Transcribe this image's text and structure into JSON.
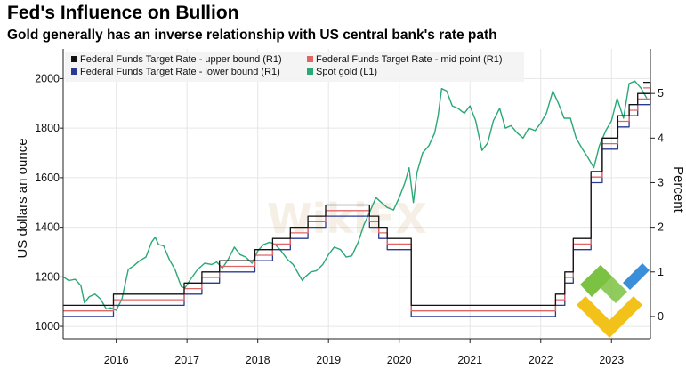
{
  "title": "Fed's Influence on Bullion",
  "subtitle": "Gold generally has an inverse relationship with US central bank's rate path",
  "watermark": "WikiFX",
  "colors": {
    "upper": "#111111",
    "mid": "#e06666",
    "lower": "#2b3a8f",
    "gold": "#2aa876",
    "grid": "#e6e6e6",
    "logo_green": "#7cc242",
    "logo_yellow": "#f2c21b",
    "logo_blue": "#3a8fd8"
  },
  "chart_data": {
    "type": "line",
    "title": "Fed's Influence on Bullion",
    "subtitle": "Gold generally has an inverse relationship with US central bank's rate path",
    "ylabel_left": "US dollars an ounce",
    "ylabel_right": "Percent",
    "xlim": [
      2015.25,
      2023.55
    ],
    "ylim_left": [
      950,
      2120
    ],
    "ylim_right": [
      -0.5,
      6.0
    ],
    "x_tick_labels": [
      "2016",
      "2017",
      "2018",
      "2019",
      "2020",
      "2021",
      "2022",
      "2023"
    ],
    "x_tick_positions": [
      2016.0,
      2017.0,
      2018.0,
      2019.0,
      2020.0,
      2021.0,
      2022.0,
      2023.0
    ],
    "y_left_ticks": [
      1000,
      1200,
      1400,
      1600,
      1800,
      2000
    ],
    "y_right_ticks": [
      0,
      1,
      2,
      3,
      4,
      5
    ],
    "grid": true,
    "legend_position": "top",
    "legend": [
      "Federal Funds Target Rate - upper bound (R1)",
      "Federal Funds Target Rate - mid point (R1)",
      "Federal Funds Target Rate - lower bound (R1)",
      "Spot gold (L1)"
    ],
    "series": [
      {
        "name": "Federal Funds Target Rate - upper bound (R1)",
        "axis": "right",
        "shape": "step",
        "x": [
          2015.25,
          2015.96,
          2016.96,
          2017.21,
          2017.46,
          2017.96,
          2018.21,
          2018.46,
          2018.71,
          2018.96,
          2019.58,
          2019.71,
          2019.83,
          2020.17,
          2022.21,
          2022.34,
          2022.46,
          2022.71,
          2022.87,
          2023.09,
          2023.25,
          2023.37,
          2023.55
        ],
        "values": [
          0.25,
          0.5,
          0.75,
          1.0,
          1.25,
          1.5,
          1.75,
          2.0,
          2.25,
          2.5,
          2.25,
          2.0,
          1.75,
          0.25,
          0.5,
          1.0,
          1.75,
          3.25,
          4.0,
          4.5,
          4.75,
          5.0,
          5.25
        ]
      },
      {
        "name": "Federal Funds Target Rate - mid point (R1)",
        "axis": "right",
        "shape": "step",
        "x": [
          2015.25,
          2015.96,
          2016.96,
          2017.21,
          2017.46,
          2017.96,
          2018.21,
          2018.46,
          2018.71,
          2018.96,
          2019.58,
          2019.71,
          2019.83,
          2020.17,
          2022.21,
          2022.34,
          2022.46,
          2022.71,
          2022.87,
          2023.09,
          2023.25,
          2023.37,
          2023.55
        ],
        "values": [
          0.125,
          0.375,
          0.625,
          0.875,
          1.125,
          1.375,
          1.625,
          1.875,
          2.125,
          2.375,
          2.125,
          1.875,
          1.625,
          0.125,
          0.375,
          0.875,
          1.625,
          3.125,
          3.875,
          4.375,
          4.625,
          4.875,
          5.125
        ]
      },
      {
        "name": "Federal Funds Target Rate - lower bound (R1)",
        "axis": "right",
        "shape": "step",
        "x": [
          2015.25,
          2015.96,
          2016.96,
          2017.21,
          2017.46,
          2017.96,
          2018.21,
          2018.46,
          2018.71,
          2018.96,
          2019.58,
          2019.71,
          2019.83,
          2020.17,
          2022.21,
          2022.34,
          2022.46,
          2022.71,
          2022.87,
          2023.09,
          2023.25,
          2023.37,
          2023.55
        ],
        "values": [
          0.0,
          0.25,
          0.5,
          0.75,
          1.0,
          1.25,
          1.5,
          1.75,
          2.0,
          2.25,
          2.0,
          1.75,
          1.5,
          0.0,
          0.25,
          0.75,
          1.5,
          3.0,
          3.75,
          4.25,
          4.5,
          4.75,
          5.0
        ]
      },
      {
        "name": "Spot gold (L1)",
        "axis": "left",
        "shape": "line",
        "x": [
          2015.25,
          2015.33,
          2015.42,
          2015.5,
          2015.55,
          2015.62,
          2015.7,
          2015.78,
          2015.86,
          2015.92,
          2016.0,
          2016.08,
          2016.17,
          2016.25,
          2016.33,
          2016.42,
          2016.5,
          2016.55,
          2016.6,
          2016.67,
          2016.75,
          2016.83,
          2016.92,
          2016.97,
          2017.05,
          2017.15,
          2017.25,
          2017.35,
          2017.42,
          2017.5,
          2017.58,
          2017.67,
          2017.75,
          2017.83,
          2017.92,
          2018.0,
          2018.08,
          2018.17,
          2018.25,
          2018.33,
          2018.42,
          2018.5,
          2018.58,
          2018.63,
          2018.67,
          2018.75,
          2018.83,
          2018.92,
          2019.0,
          2019.08,
          2019.17,
          2019.25,
          2019.33,
          2019.42,
          2019.5,
          2019.58,
          2019.67,
          2019.75,
          2019.83,
          2019.92,
          2020.0,
          2020.08,
          2020.14,
          2020.2,
          2020.25,
          2020.33,
          2020.42,
          2020.5,
          2020.55,
          2020.6,
          2020.67,
          2020.75,
          2020.83,
          2020.92,
          2021.0,
          2021.08,
          2021.17,
          2021.25,
          2021.33,
          2021.42,
          2021.5,
          2021.58,
          2021.67,
          2021.75,
          2021.83,
          2021.92,
          2022.0,
          2022.08,
          2022.17,
          2022.25,
          2022.33,
          2022.42,
          2022.5,
          2022.58,
          2022.67,
          2022.75,
          2022.83,
          2022.92,
          2023.0,
          2023.08,
          2023.17,
          2023.25,
          2023.33,
          2023.42,
          2023.5
        ],
        "values": [
          1200,
          1185,
          1190,
          1165,
          1095,
          1120,
          1130,
          1110,
          1070,
          1075,
          1065,
          1110,
          1230,
          1245,
          1265,
          1280,
          1340,
          1360,
          1330,
          1325,
          1270,
          1230,
          1160,
          1155,
          1190,
          1230,
          1255,
          1250,
          1260,
          1235,
          1270,
          1320,
          1290,
          1280,
          1255,
          1305,
          1330,
          1340,
          1330,
          1305,
          1270,
          1250,
          1210,
          1185,
          1200,
          1220,
          1225,
          1250,
          1290,
          1320,
          1310,
          1280,
          1285,
          1340,
          1410,
          1460,
          1520,
          1500,
          1480,
          1470,
          1520,
          1580,
          1640,
          1500,
          1620,
          1700,
          1730,
          1780,
          1850,
          1960,
          1950,
          1890,
          1880,
          1860,
          1890,
          1830,
          1710,
          1740,
          1830,
          1880,
          1800,
          1810,
          1780,
          1760,
          1800,
          1790,
          1820,
          1860,
          1950,
          1900,
          1840,
          1840,
          1760,
          1720,
          1680,
          1640,
          1730,
          1790,
          1830,
          1920,
          1840,
          1980,
          1990,
          1960,
          1920
        ]
      }
    ]
  }
}
